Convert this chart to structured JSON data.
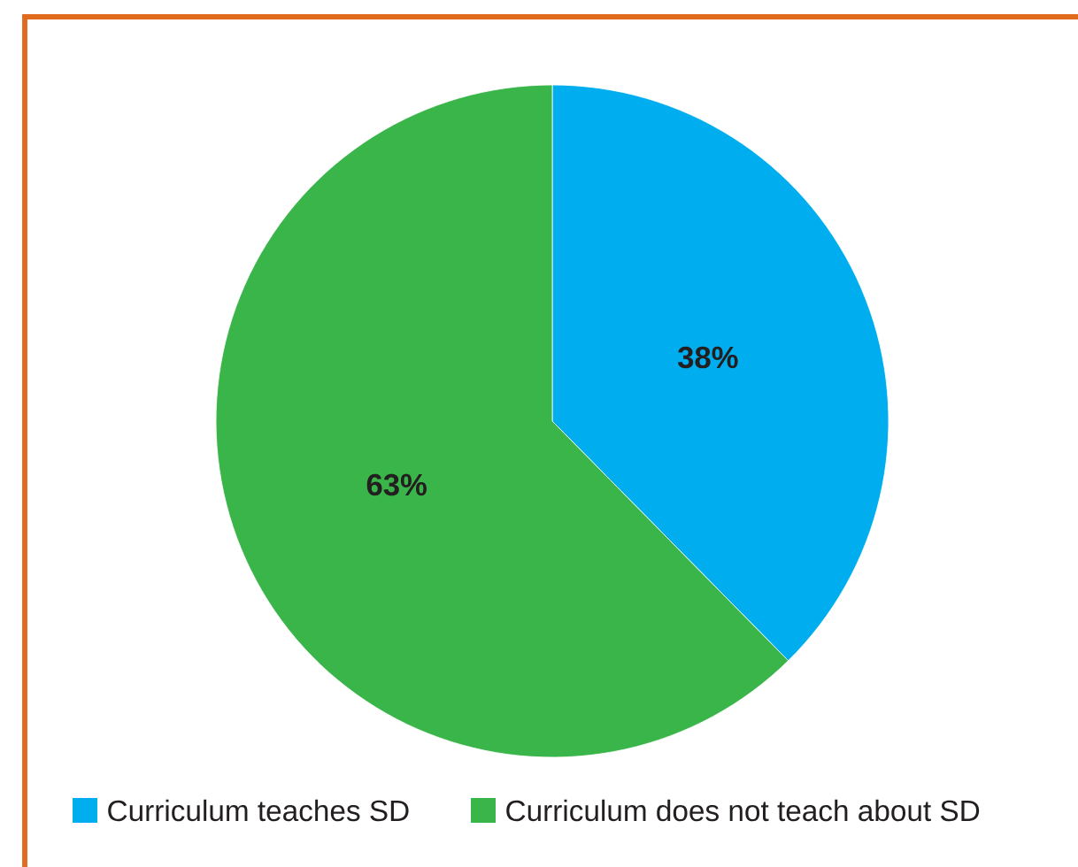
{
  "chart_data": {
    "type": "pie",
    "categories": [
      "Curriculum teaches SD",
      "Curriculum does not teach about SD"
    ],
    "values": [
      38,
      63
    ],
    "value_labels": [
      "38%",
      "63%"
    ],
    "colors": [
      "#00aeef",
      "#39b54a"
    ],
    "legend": "bottom"
  }
}
